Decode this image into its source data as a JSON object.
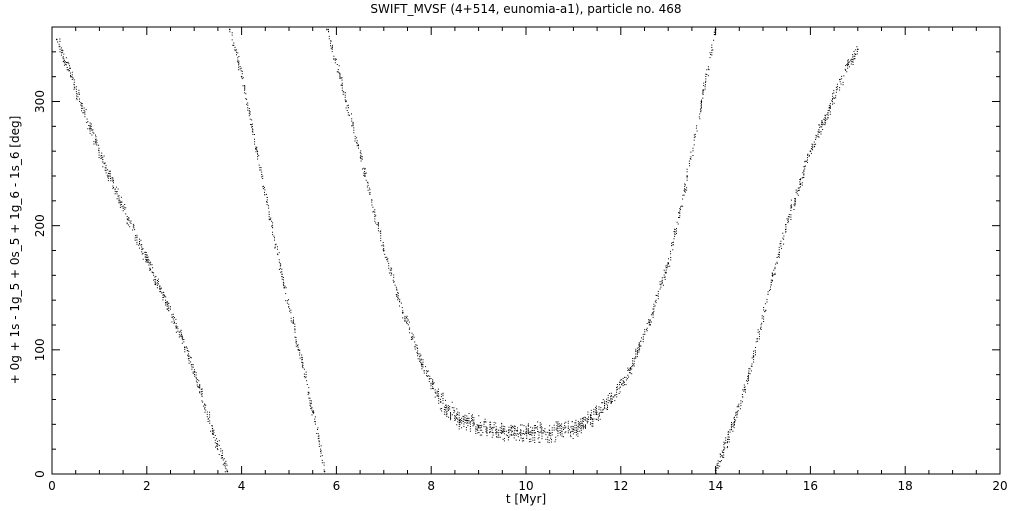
{
  "chart_data": {
    "type": "scatter",
    "title": "SWIFT_MVSF (4+514, eunomia-a1), particle no. 468",
    "xlabel": "t [Myr]",
    "ylabel": "+ 0g + 1s - 1g_5 + 0s_5 + 1g_6 - 1s_6 [deg]",
    "xlim": [
      0,
      20
    ],
    "ylim": [
      0,
      360
    ],
    "x_ticks": [
      0,
      2,
      4,
      6,
      8,
      10,
      12,
      14,
      16,
      18,
      20
    ],
    "y_ticks": [
      0,
      100,
      200,
      300
    ],
    "grid": false,
    "legend": "none",
    "marker_color": "#000000",
    "series": [
      {
        "points": [
          [
            0.1,
            350
          ],
          [
            0.4,
            320
          ],
          [
            0.8,
            278
          ],
          [
            1.2,
            240
          ],
          [
            1.6,
            205
          ],
          [
            2.0,
            172
          ],
          [
            2.4,
            138
          ],
          [
            2.8,
            102
          ],
          [
            3.1,
            70
          ],
          [
            3.4,
            32
          ],
          [
            3.7,
            2
          ]
        ]
      },
      {
        "points": [
          [
            3.75,
            358
          ],
          [
            4.0,
            320
          ],
          [
            4.3,
            262
          ],
          [
            4.6,
            205
          ],
          [
            4.9,
            150
          ],
          [
            5.2,
            100
          ],
          [
            5.5,
            50
          ],
          [
            5.75,
            2
          ]
        ]
      },
      {
        "points": [
          [
            5.8,
            358
          ],
          [
            6.2,
            300
          ],
          [
            6.6,
            240
          ],
          [
            7.0,
            180
          ],
          [
            7.4,
            130
          ],
          [
            7.8,
            88
          ],
          [
            8.2,
            58
          ],
          [
            8.6,
            43
          ],
          [
            9.0,
            38
          ],
          [
            9.5,
            34
          ],
          [
            10.0,
            33
          ],
          [
            10.5,
            33
          ],
          [
            11.0,
            36
          ],
          [
            11.4,
            44
          ],
          [
            11.8,
            58
          ],
          [
            12.2,
            85
          ],
          [
            12.6,
            122
          ],
          [
            13.0,
            170
          ],
          [
            13.4,
            240
          ],
          [
            13.7,
            300
          ],
          [
            14.0,
            358
          ]
        ]
      },
      {
        "points": [
          [
            14.0,
            3
          ],
          [
            14.4,
            42
          ],
          [
            14.8,
            95
          ],
          [
            15.2,
            160
          ],
          [
            15.6,
            215
          ],
          [
            16.0,
            260
          ],
          [
            16.4,
            295
          ],
          [
            16.8,
            330
          ],
          [
            17.0,
            342
          ]
        ]
      }
    ]
  }
}
